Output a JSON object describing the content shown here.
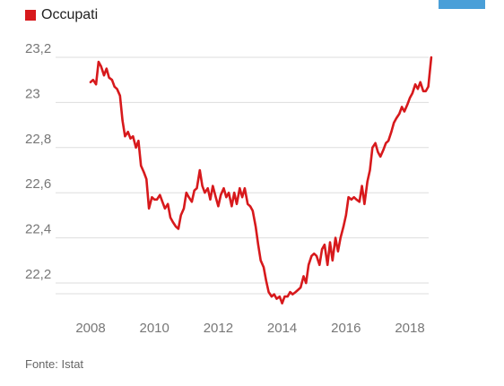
{
  "legend": {
    "label": "Occupati",
    "color": "#d7191c"
  },
  "corner_tab_color": "#4a9fd8",
  "source": "Fonte: Istat",
  "chart_data": {
    "type": "line",
    "series": [
      {
        "name": "Occupati",
        "color": "#d7191c",
        "points": [
          [
            2008.0,
            23.09
          ],
          [
            2008.08,
            23.1
          ],
          [
            2008.17,
            23.08
          ],
          [
            2008.25,
            23.18
          ],
          [
            2008.33,
            23.16
          ],
          [
            2008.42,
            23.12
          ],
          [
            2008.5,
            23.15
          ],
          [
            2008.58,
            23.11
          ],
          [
            2008.67,
            23.1
          ],
          [
            2008.75,
            23.07
          ],
          [
            2008.83,
            23.06
          ],
          [
            2008.92,
            23.03
          ],
          [
            2009.0,
            22.92
          ],
          [
            2009.08,
            22.85
          ],
          [
            2009.17,
            22.87
          ],
          [
            2009.25,
            22.84
          ],
          [
            2009.33,
            22.85
          ],
          [
            2009.42,
            22.8
          ],
          [
            2009.5,
            22.83
          ],
          [
            2009.58,
            22.72
          ],
          [
            2009.67,
            22.69
          ],
          [
            2009.75,
            22.66
          ],
          [
            2009.83,
            22.53
          ],
          [
            2009.92,
            22.58
          ],
          [
            2010.0,
            22.57
          ],
          [
            2010.08,
            22.57
          ],
          [
            2010.17,
            22.59
          ],
          [
            2010.25,
            22.56
          ],
          [
            2010.33,
            22.53
          ],
          [
            2010.42,
            22.55
          ],
          [
            2010.5,
            22.49
          ],
          [
            2010.58,
            22.47
          ],
          [
            2010.67,
            22.45
          ],
          [
            2010.75,
            22.44
          ],
          [
            2010.83,
            22.5
          ],
          [
            2010.92,
            22.53
          ],
          [
            2011.0,
            22.6
          ],
          [
            2011.08,
            22.58
          ],
          [
            2011.17,
            22.56
          ],
          [
            2011.25,
            22.61
          ],
          [
            2011.33,
            22.62
          ],
          [
            2011.42,
            22.7
          ],
          [
            2011.5,
            22.63
          ],
          [
            2011.58,
            22.6
          ],
          [
            2011.67,
            22.62
          ],
          [
            2011.75,
            22.57
          ],
          [
            2011.83,
            22.63
          ],
          [
            2011.92,
            22.58
          ],
          [
            2012.0,
            22.54
          ],
          [
            2012.08,
            22.59
          ],
          [
            2012.17,
            22.62
          ],
          [
            2012.25,
            22.58
          ],
          [
            2012.33,
            22.6
          ],
          [
            2012.42,
            22.54
          ],
          [
            2012.5,
            22.6
          ],
          [
            2012.58,
            22.55
          ],
          [
            2012.67,
            22.62
          ],
          [
            2012.75,
            22.58
          ],
          [
            2012.83,
            22.62
          ],
          [
            2012.92,
            22.55
          ],
          [
            2013.0,
            22.54
          ],
          [
            2013.08,
            22.52
          ],
          [
            2013.17,
            22.45
          ],
          [
            2013.25,
            22.37
          ],
          [
            2013.33,
            22.3
          ],
          [
            2013.42,
            22.27
          ],
          [
            2013.5,
            22.21
          ],
          [
            2013.58,
            22.16
          ],
          [
            2013.67,
            22.14
          ],
          [
            2013.75,
            22.15
          ],
          [
            2013.83,
            22.13
          ],
          [
            2013.92,
            22.14
          ],
          [
            2014.0,
            22.11
          ],
          [
            2014.08,
            22.14
          ],
          [
            2014.17,
            22.14
          ],
          [
            2014.25,
            22.16
          ],
          [
            2014.33,
            22.15
          ],
          [
            2014.42,
            22.16
          ],
          [
            2014.5,
            22.17
          ],
          [
            2014.58,
            22.18
          ],
          [
            2014.67,
            22.23
          ],
          [
            2014.75,
            22.2
          ],
          [
            2014.83,
            22.28
          ],
          [
            2014.92,
            22.32
          ],
          [
            2015.0,
            22.33
          ],
          [
            2015.08,
            22.32
          ],
          [
            2015.17,
            22.28
          ],
          [
            2015.25,
            22.35
          ],
          [
            2015.33,
            22.37
          ],
          [
            2015.42,
            22.28
          ],
          [
            2015.5,
            22.38
          ],
          [
            2015.58,
            22.3
          ],
          [
            2015.67,
            22.4
          ],
          [
            2015.75,
            22.34
          ],
          [
            2015.83,
            22.4
          ],
          [
            2015.92,
            22.45
          ],
          [
            2016.0,
            22.5
          ],
          [
            2016.08,
            22.58
          ],
          [
            2016.17,
            22.57
          ],
          [
            2016.25,
            22.58
          ],
          [
            2016.33,
            22.57
          ],
          [
            2016.42,
            22.56
          ],
          [
            2016.5,
            22.63
          ],
          [
            2016.58,
            22.55
          ],
          [
            2016.67,
            22.65
          ],
          [
            2016.75,
            22.7
          ],
          [
            2016.83,
            22.8
          ],
          [
            2016.92,
            22.82
          ],
          [
            2017.0,
            22.78
          ],
          [
            2017.08,
            22.76
          ],
          [
            2017.17,
            22.79
          ],
          [
            2017.25,
            22.82
          ],
          [
            2017.33,
            22.83
          ],
          [
            2017.42,
            22.87
          ],
          [
            2017.5,
            22.91
          ],
          [
            2017.58,
            22.93
          ],
          [
            2017.67,
            22.95
          ],
          [
            2017.75,
            22.98
          ],
          [
            2017.83,
            22.96
          ],
          [
            2017.92,
            22.99
          ],
          [
            2018.0,
            23.02
          ],
          [
            2018.08,
            23.04
          ],
          [
            2018.17,
            23.08
          ],
          [
            2018.25,
            23.06
          ],
          [
            2018.33,
            23.09
          ],
          [
            2018.42,
            23.05
          ],
          [
            2018.5,
            23.05
          ],
          [
            2018.58,
            23.07
          ],
          [
            2018.67,
            23.2
          ]
        ]
      }
    ],
    "x_ticks": [
      2008,
      2010,
      2012,
      2014,
      2016,
      2018
    ],
    "x_tick_labels": [
      "2008",
      "2010",
      "2012",
      "2014",
      "2016",
      "2018"
    ],
    "y_ticks": [
      22.2,
      22.4,
      22.6,
      22.8,
      23.0,
      23.2
    ],
    "y_tick_labels": [
      "22,2",
      "22,4",
      "22,6",
      "22,8",
      "23",
      "23,2"
    ],
    "xlim": [
      2007.9,
      2018.85
    ],
    "ylim": [
      22.1,
      23.23
    ],
    "grid": "horizontal",
    "legend_position": "top-left",
    "xlabel": "",
    "ylabel": "",
    "title": ""
  }
}
